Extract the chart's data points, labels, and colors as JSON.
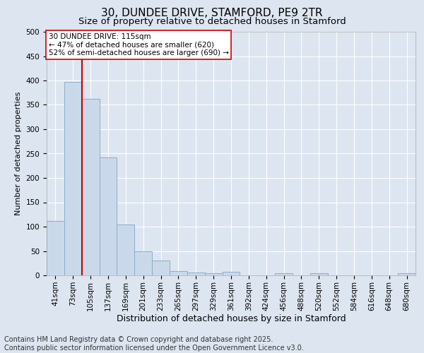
{
  "title": "30, DUNDEE DRIVE, STAMFORD, PE9 2TR",
  "subtitle": "Size of property relative to detached houses in Stamford",
  "xlabel": "Distribution of detached houses by size in Stamford",
  "ylabel": "Number of detached properties",
  "categories": [
    "41sqm",
    "73sqm",
    "105sqm",
    "137sqm",
    "169sqm",
    "201sqm",
    "233sqm",
    "265sqm",
    "297sqm",
    "329sqm",
    "361sqm",
    "392sqm",
    "424sqm",
    "456sqm",
    "488sqm",
    "520sqm",
    "552sqm",
    "584sqm",
    "616sqm",
    "648sqm",
    "680sqm"
  ],
  "values": [
    112,
    397,
    362,
    242,
    105,
    50,
    30,
    9,
    6,
    5,
    7,
    0,
    0,
    4,
    0,
    4,
    0,
    0,
    0,
    0,
    4
  ],
  "bar_color": "#cad9ea",
  "bar_edge_color": "#8aadc8",
  "red_line_x": 1.5,
  "annotation_title": "30 DUNDEE DRIVE: 115sqm",
  "annotation_line1": "← 47% of detached houses are smaller (620)",
  "annotation_line2": "52% of semi-detached houses are larger (690) →",
  "annotation_box_color": "#ffffff",
  "annotation_box_edge": "#cc0000",
  "red_line_color": "#cc0000",
  "background_color": "#dde5f0",
  "plot_bg_color": "#dde5f0",
  "footer": "Contains HM Land Registry data © Crown copyright and database right 2025.\nContains public sector information licensed under the Open Government Licence v3.0.",
  "ylim": [
    0,
    500
  ],
  "yticks": [
    0,
    50,
    100,
    150,
    200,
    250,
    300,
    350,
    400,
    450,
    500
  ],
  "title_fontsize": 11,
  "subtitle_fontsize": 9.5,
  "xlabel_fontsize": 9,
  "ylabel_fontsize": 8,
  "tick_fontsize": 7.5,
  "annotation_fontsize": 7.5,
  "footer_fontsize": 7
}
